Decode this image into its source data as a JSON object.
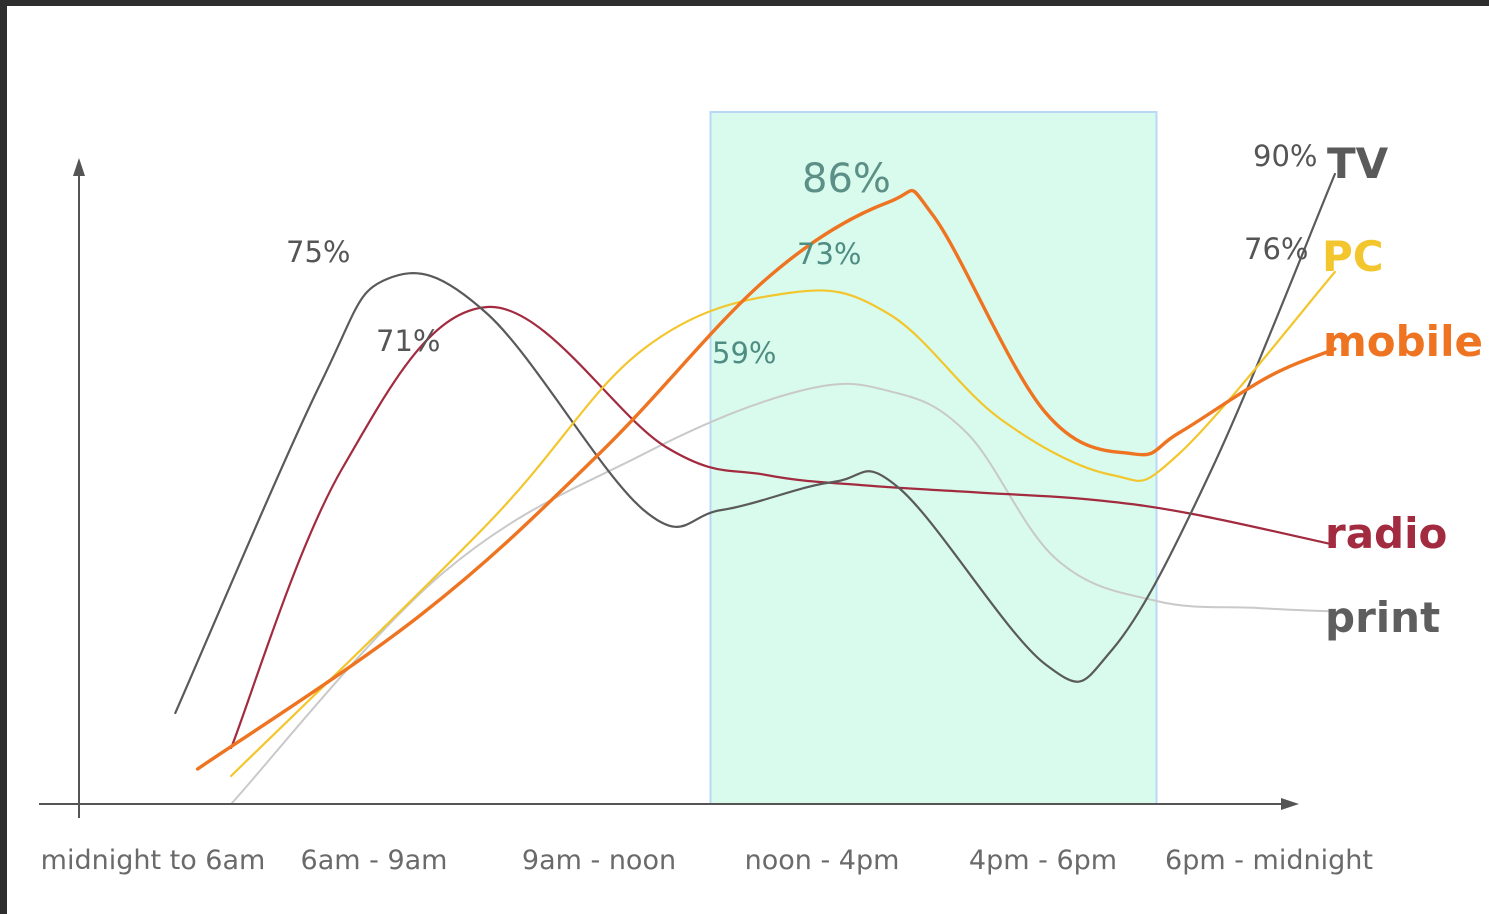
{
  "chart_data": {
    "type": "line",
    "title": "",
    "xlabel": "",
    "ylabel": "",
    "categories": [
      "midnight to 6am",
      "6am - 9am",
      "9am - noon",
      "noon - 4pm",
      "4pm - 6pm",
      "6pm - midnight"
    ],
    "ylim": [
      0,
      100
    ],
    "highlight_band": {
      "from": "noon - 4pm",
      "to": "4pm - 6pm",
      "color": "#d8fbee"
    },
    "series": [
      {
        "name": "TV",
        "color": "#5a5a5a",
        "width": 2.2,
        "x": [
          0.1,
          0.75,
          1.05,
          1.5,
          2.2,
          2.55,
          3.05,
          3.35,
          4.0,
          4.3,
          4.75,
          5.3
        ],
        "y": [
          13,
          60,
          75,
          70,
          42,
          42,
          46,
          45,
          20,
          22,
          48,
          90
        ]
      },
      {
        "name": "PC",
        "color": "#f2c62c",
        "width": 2.2,
        "x": [
          0.35,
          1.5,
          2.2,
          2.85,
          3.3,
          3.8,
          4.3,
          4.6,
          5.3
        ],
        "y": [
          4,
          40,
          65,
          73,
          70,
          55,
          47,
          50,
          76
        ]
      },
      {
        "name": "mobile",
        "color": "#ee7422",
        "width": 3.4,
        "x": [
          0.2,
          1.2,
          2.0,
          2.75,
          3.3,
          3.5,
          4.0,
          4.4,
          4.6,
          5.0,
          5.3
        ],
        "y": [
          5,
          27,
          50,
          75,
          86,
          84,
          56,
          50,
          53,
          61,
          65
        ]
      },
      {
        "name": "radio",
        "color": "#a22b3f",
        "width": 2.2,
        "x": [
          0.35,
          0.85,
          1.5,
          2.3,
          2.75,
          3.2,
          3.7,
          4.2,
          4.65,
          5.3
        ],
        "y": [
          8,
          48,
          71,
          51,
          47,
          45.5,
          44.5,
          43.5,
          41.5,
          37
        ]
      },
      {
        "name": "print",
        "color": "#c9c9c9",
        "width": 2.0,
        "x": [
          0.35,
          1.3,
          2.2,
          2.9,
          3.3,
          3.65,
          4.05,
          4.5,
          4.95,
          5.3
        ],
        "y": [
          0,
          33,
          50,
          59,
          59,
          53,
          35,
          29,
          28,
          27.5
        ]
      }
    ],
    "annotations": [
      {
        "text": "75%",
        "series": "TV"
      },
      {
        "text": "71%",
        "series": "radio"
      },
      {
        "text": "86%",
        "series": "mobile"
      },
      {
        "text": "73%",
        "series": "PC"
      },
      {
        "text": "59%",
        "series": "print"
      },
      {
        "text": "90%",
        "series": "TV"
      },
      {
        "text": "76%",
        "series": "PC"
      }
    ],
    "legend_labels": [
      {
        "text": "TV",
        "color": "#5a5a5a"
      },
      {
        "text": "PC",
        "color": "#f2c62c"
      },
      {
        "text": "mobile",
        "color": "#ee7422"
      },
      {
        "text": "radio",
        "color": "#a22b3f"
      },
      {
        "text": "print",
        "color": "#5e5e5e"
      }
    ]
  }
}
